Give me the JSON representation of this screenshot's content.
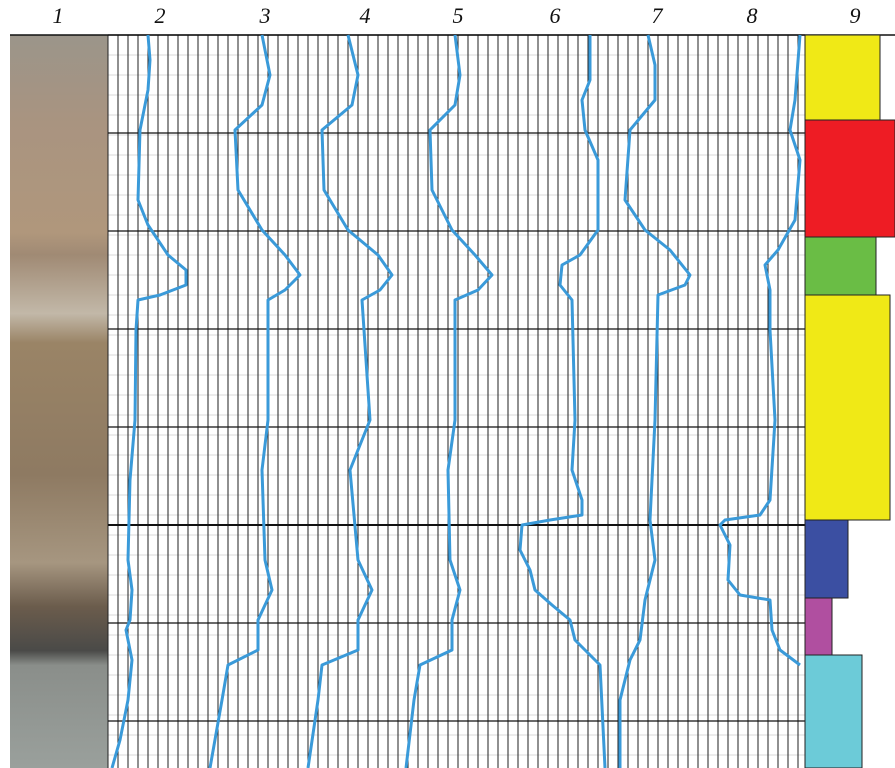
{
  "columns": [
    "1",
    "2",
    "3",
    "4",
    "5",
    "6",
    "7",
    "8",
    "9"
  ]
}
